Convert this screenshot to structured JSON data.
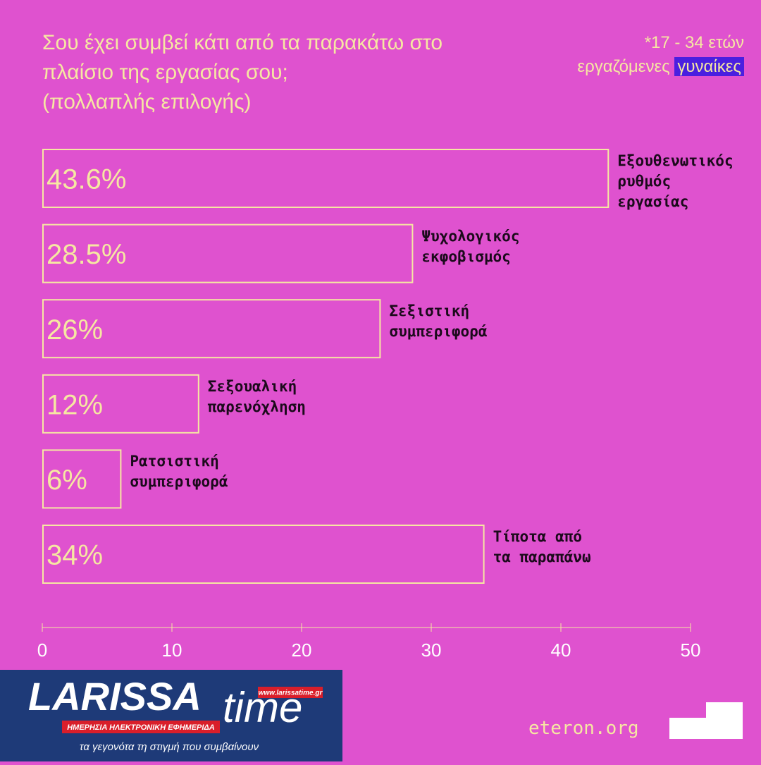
{
  "chart_data": {
    "type": "bar",
    "title": "Σου έχει συμβεί κάτι από τα παρακάτω στο πλαίσιο της εργασίας σου;",
    "subtitle": "(πολλαπλής επιλογής)",
    "note": {
      "age": "*17 - 34 ετών",
      "group": "εργαζόμενες",
      "highlight": "γυναίκες"
    },
    "categories": [
      "Εξουθενωτικός ρυθμός εργασίας",
      "Ψυχολογικός εκφοβισμός",
      "Σεξιστική συμπεριφορά",
      "Σεξουαλική παρενόχληση",
      "Ρατσιστική συμπεριφορά",
      "Τίποτα από τα παραπάνω"
    ],
    "values": [
      43.6,
      28.5,
      26,
      12,
      6,
      34
    ],
    "value_labels": [
      "43.6%",
      "28.5%",
      "26%",
      "12%",
      "6%",
      "34%"
    ],
    "color": "#f6e7a2",
    "xlim": [
      0,
      50
    ],
    "xticks": [
      0,
      10,
      20,
      30,
      40,
      50
    ],
    "source": "eteron.org",
    "logo": {
      "name_a": "LARISSA",
      "name_b": "time",
      "url": "www.larissatime.gr",
      "tagline": "ΗΜΕΡΗΣΙΑ ΗΛΕΚΤΡΟΝΙΚΗ ΕΦΗΜΕΡΙΔΑ",
      "slogan": "τα γεγονότα τη στιγμή που συμβαίνουν"
    }
  }
}
